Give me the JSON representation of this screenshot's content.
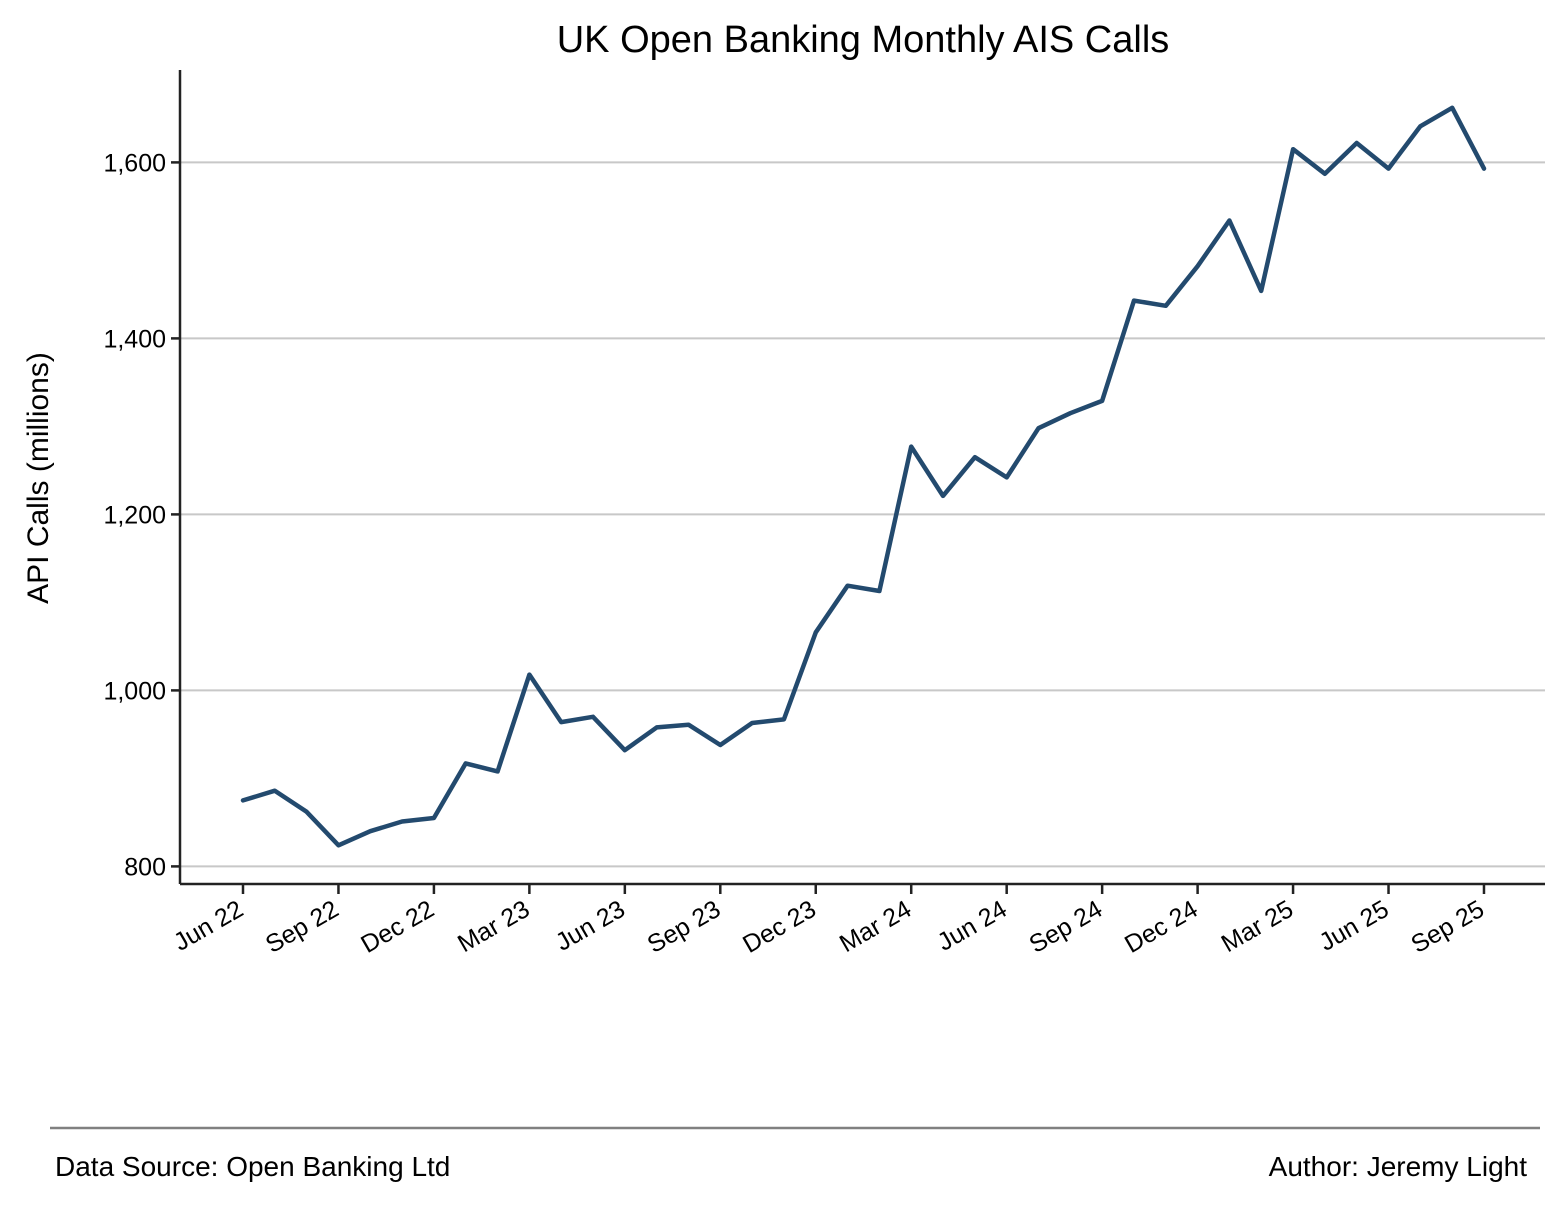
{
  "chart_data": {
    "type": "line",
    "title": "UK Open Banking Monthly AIS Calls",
    "xlabel": "",
    "ylabel": "API Calls (millions)",
    "ylim": [
      780,
      1705
    ],
    "yticks": [
      800,
      1000,
      1200,
      1400,
      1600
    ],
    "ytick_labels": [
      "800",
      "1,000",
      "1,200",
      "1,400",
      "1,600"
    ],
    "xticks": [
      "2022-06",
      "2022-09",
      "2022-12",
      "2023-03",
      "2023-06",
      "2023-09",
      "2023-12",
      "2024-03",
      "2024-06",
      "2024-09",
      "2024-12",
      "2025-03",
      "2025-06",
      "2025-09"
    ],
    "xtick_labels": [
      "Jun 22",
      "Sep 22",
      "Dec 22",
      "Mar 23",
      "Jun 23",
      "Sep 23",
      "Dec 23",
      "Mar 24",
      "Jun 24",
      "Sep 24",
      "Dec 24",
      "Mar 25",
      "Jun 25",
      "Sep 25"
    ],
    "grid": "horizontal",
    "color": "#234a6e",
    "series": [
      {
        "x": [
          "2022-06",
          "2022-07",
          "2022-08",
          "2022-09",
          "2022-10",
          "2022-11",
          "2022-12",
          "2023-01",
          "2023-02",
          "2023-03",
          "2023-04",
          "2023-05",
          "2023-06",
          "2023-07",
          "2023-08",
          "2023-09",
          "2023-10",
          "2023-11",
          "2023-12",
          "2024-01",
          "2024-02",
          "2024-03",
          "2024-04",
          "2024-05",
          "2024-06",
          "2024-07",
          "2024-08",
          "2024-09",
          "2024-10",
          "2024-11",
          "2024-12",
          "2025-01",
          "2025-02",
          "2025-03",
          "2025-04",
          "2025-05",
          "2025-06",
          "2025-07",
          "2025-08",
          "2025-09"
        ],
        "values": [
          875,
          886,
          862,
          824,
          840,
          851,
          855,
          917,
          908,
          1018,
          964,
          970,
          932,
          958,
          961,
          938,
          963,
          967,
          1066,
          1119,
          1113,
          1277,
          1221,
          1265,
          1242,
          1298,
          1315,
          1329,
          1443,
          1437,
          1482,
          1534,
          1454,
          1615,
          1587,
          1622,
          1593,
          1641,
          1662,
          1593
        ]
      }
    ]
  },
  "footer": {
    "source": "Data Source: Open Banking Ltd",
    "author": "Author: Jeremy Light"
  }
}
